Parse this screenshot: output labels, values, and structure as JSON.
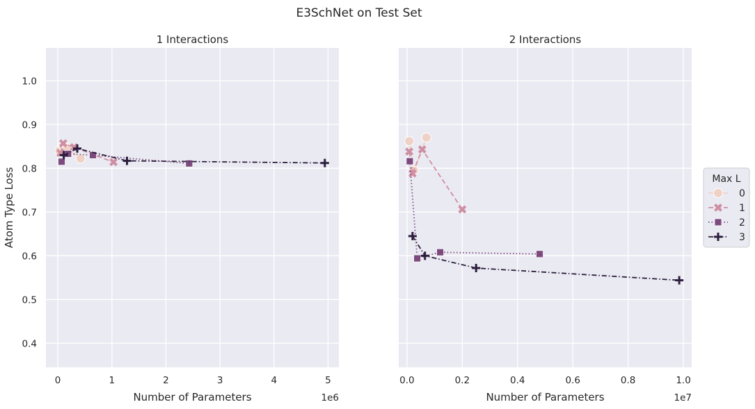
{
  "figure": {
    "title": "E3SchNet on Test Set"
  },
  "legend": {
    "title": "Max L",
    "placement": "right",
    "entries": [
      {
        "label": "0",
        "color": "#efd1c6",
        "marker": "circle",
        "dash": "solid"
      },
      {
        "label": "1",
        "color": "#cf8fa3",
        "marker": "x",
        "dash": "dashed"
      },
      {
        "label": "2",
        "color": "#7d4a7e",
        "marker": "square",
        "dash": "dotted"
      },
      {
        "label": "3",
        "color": "#2c1e3d",
        "marker": "plus",
        "dash": "dashdot"
      }
    ]
  },
  "chart_data": [
    {
      "type": "line",
      "title": "1 Interactions",
      "xlabel": "Number of Parameters",
      "ylabel": "Atom Type Loss",
      "x_offset_label": "1e6",
      "x_scale": 1000000,
      "xlim": [
        -0.22,
        5.2
      ],
      "ylim": [
        0.345,
        1.075
      ],
      "xticks": [
        0,
        1,
        2,
        3,
        4,
        5
      ],
      "yticks": [
        0.4,
        0.5,
        0.6,
        0.7,
        0.8,
        0.9,
        1.0
      ],
      "grid": true,
      "series": [
        {
          "name": "0",
          "points": [
            [
              0.03,
              0.84
            ],
            [
              0.1,
              0.85
            ],
            [
              0.17,
              0.846
            ],
            [
              0.42,
              0.822
            ]
          ]
        },
        {
          "name": "1",
          "points": [
            [
              0.05,
              0.835
            ],
            [
              0.1,
              0.857
            ],
            [
              0.3,
              0.848
            ],
            [
              1.03,
              0.814
            ]
          ]
        },
        {
          "name": "2",
          "points": [
            [
              0.07,
              0.815
            ],
            [
              0.19,
              0.833
            ],
            [
              0.65,
              0.83
            ],
            [
              2.43,
              0.811
            ]
          ]
        },
        {
          "name": "3",
          "points": [
            [
              0.11,
              0.83
            ],
            [
              0.36,
              0.845
            ],
            [
              1.28,
              0.817
            ],
            [
              4.94,
              0.812
            ]
          ]
        }
      ]
    },
    {
      "type": "line",
      "title": "2 Interactions",
      "xlabel": "Number of Parameters",
      "ylabel": "",
      "x_offset_label": "1e7",
      "x_scale": 10000000,
      "xlim": [
        -0.03,
        1.03
      ],
      "ylim": [
        0.345,
        1.075
      ],
      "xticks": [
        0.0,
        0.2,
        0.4,
        0.6,
        0.8,
        1.0
      ],
      "yticks": [
        0.4,
        0.5,
        0.6,
        0.7,
        0.8,
        0.9,
        1.0
      ],
      "grid": true,
      "series": [
        {
          "name": "0",
          "points": [
            [
              0.008,
              0.862
            ],
            [
              0.025,
              0.795
            ],
            [
              0.07,
              0.87
            ]
          ]
        },
        {
          "name": "1",
          "points": [
            [
              0.008,
              0.838
            ],
            [
              0.02,
              0.788
            ],
            [
              0.055,
              0.843
            ],
            [
              0.2,
              0.706
            ]
          ]
        },
        {
          "name": "2",
          "points": [
            [
              0.01,
              0.816
            ],
            [
              0.037,
              0.594
            ],
            [
              0.12,
              0.608
            ],
            [
              0.48,
              0.604
            ]
          ]
        },
        {
          "name": "3",
          "points": [
            [
              0.02,
              0.645
            ],
            [
              0.065,
              0.6
            ],
            [
              0.25,
              0.572
            ],
            [
              0.985,
              0.544
            ]
          ]
        }
      ]
    }
  ]
}
